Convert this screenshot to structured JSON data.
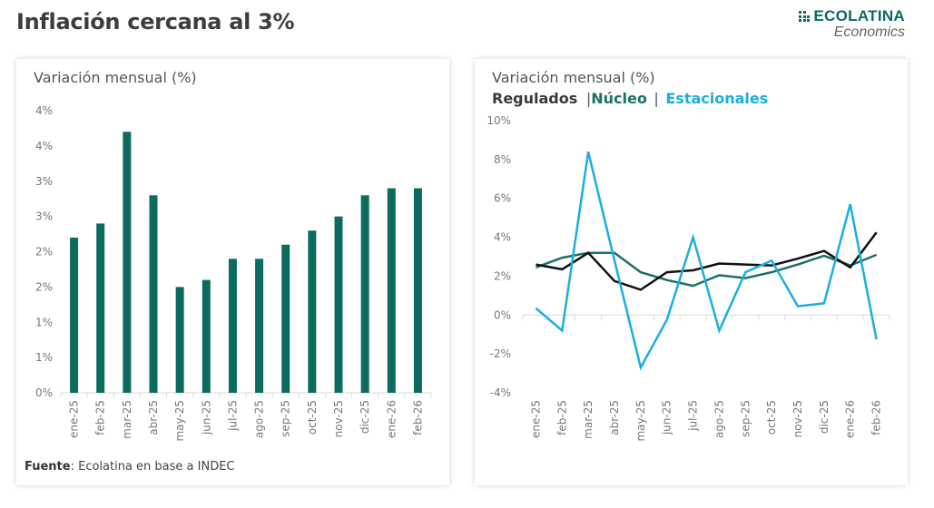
{
  "page": {
    "title": "Inflación cercana al 3%"
  },
  "logo": {
    "name": "ECOLATINA",
    "sub": "Economics",
    "icon": "grid-dots-icon",
    "color": "#0b6b5e"
  },
  "chart_data": [
    {
      "type": "bar",
      "title": "Variación mensual (%)",
      "xlabel": "",
      "ylabel": "",
      "categories": [
        "ene-25",
        "feb-25",
        "mar-25",
        "abr-25",
        "may-25",
        "jun-25",
        "jul-25",
        "ago-25",
        "sep-25",
        "oct-25",
        "nov-25",
        "dic-25",
        "ene-26",
        "feb-26"
      ],
      "values": [
        2.2,
        2.4,
        3.7,
        2.8,
        1.5,
        1.6,
        1.9,
        1.9,
        2.1,
        2.3,
        2.5,
        2.8,
        2.9,
        2.9
      ],
      "ylim": [
        0,
        4
      ],
      "yticks": [
        0,
        0.5,
        1,
        1.5,
        2,
        2.5,
        3,
        3.5,
        4
      ],
      "ytick_labels": [
        "0%",
        "1%",
        "1%",
        "2%",
        "2%",
        "3%",
        "3%",
        "4%",
        "4%"
      ],
      "color": "#0b6b5e",
      "grid": false,
      "source_label": "Fuente",
      "source_text": ": Ecolatina en base a INDEC"
    },
    {
      "type": "line",
      "title": "Variación mensual (%)",
      "xlabel": "",
      "ylabel": "",
      "categories": [
        "ene-25",
        "feb-25",
        "mar-25",
        "abr-25",
        "may-25",
        "jun-25",
        "jul-25",
        "ago-25",
        "sep-25",
        "oct-25",
        "nov-25",
        "dic-25",
        "ene-26",
        "feb-26"
      ],
      "ylim": [
        -4,
        10
      ],
      "yticks": [
        -4,
        -2,
        0,
        2,
        4,
        6,
        8,
        10
      ],
      "ytick_labels": [
        "-4%",
        "-2%",
        "0%",
        "2%",
        "4%",
        "6%",
        "8%",
        "10%"
      ],
      "grid": false,
      "legend": "top-left",
      "legend_separator": "|",
      "series": [
        {
          "name": "Regulados",
          "color": "#111111",
          "values": [
            2.6,
            2.35,
            3.2,
            1.75,
            1.3,
            2.2,
            2.3,
            2.65,
            2.6,
            2.55,
            2.9,
            3.3,
            2.45,
            4.25
          ]
        },
        {
          "name": "Núcleo",
          "color": "#1a7066",
          "values": [
            2.45,
            2.95,
            3.2,
            3.2,
            2.2,
            1.8,
            1.5,
            2.05,
            1.9,
            2.2,
            2.6,
            3.05,
            2.55,
            3.1
          ]
        },
        {
          "name": "Estacionales",
          "color": "#1aaee0",
          "values": [
            0.35,
            -0.8,
            8.4,
            2.8,
            -2.7,
            -0.25,
            4.0,
            -0.8,
            2.2,
            2.8,
            0.45,
            0.6,
            5.7,
            -1.25
          ]
        }
      ]
    }
  ]
}
